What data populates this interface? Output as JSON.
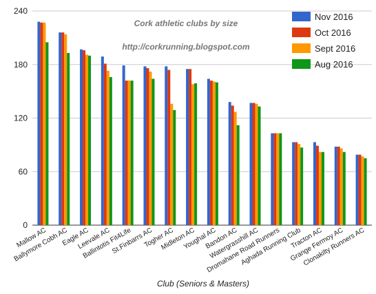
{
  "chart_data": {
    "type": "bar",
    "title": "Cork athletic clubs by size",
    "subtitle": "http://corkrunning.blogspot.com",
    "xlabel": "Club (Seniors & Masters)",
    "ylabel": "",
    "ylim": [
      0,
      240
    ],
    "yticks": [
      "0",
      "60",
      "120",
      "180",
      "240"
    ],
    "grid": true,
    "legend_position": "top-right",
    "categories": [
      "Mallow AC",
      "Ballymore Cobh AC",
      "Eagle AC",
      "Leevale AC",
      "Ballintotis Fit4Life",
      "St.Finbarrs AC",
      "Togher AC",
      "Midleton AC",
      "Youghal AC",
      "Bandon AC",
      "Watergrasshill AC",
      "Dromahane Road Runners",
      "Aghada Running Club",
      "Tracton AC",
      "Grange Fermoy AC",
      "Clonakilty Runners AC"
    ],
    "series": [
      {
        "name": "Nov 2016",
        "color": "#3366cc",
        "values": [
          228,
          216,
          197,
          189,
          179,
          178,
          178,
          175,
          164,
          138,
          137,
          103,
          93,
          93,
          88,
          79
        ]
      },
      {
        "name": "Oct 2016",
        "color": "#dc3912",
        "values": [
          227,
          216,
          196,
          181,
          162,
          176,
          174,
          175,
          162,
          134,
          137,
          103,
          93,
          89,
          88,
          79
        ]
      },
      {
        "name": "Sept 2016",
        "color": "#ff9900",
        "values": [
          227,
          214,
          191,
          173,
          162,
          172,
          136,
          158,
          161,
          127,
          136,
          103,
          91,
          82,
          86,
          77
        ]
      },
      {
        "name": "Aug 2016",
        "color": "#109618",
        "values": [
          205,
          193,
          190,
          166,
          162,
          164,
          129,
          159,
          160,
          112,
          133,
          103,
          87,
          82,
          82,
          75
        ]
      }
    ]
  }
}
